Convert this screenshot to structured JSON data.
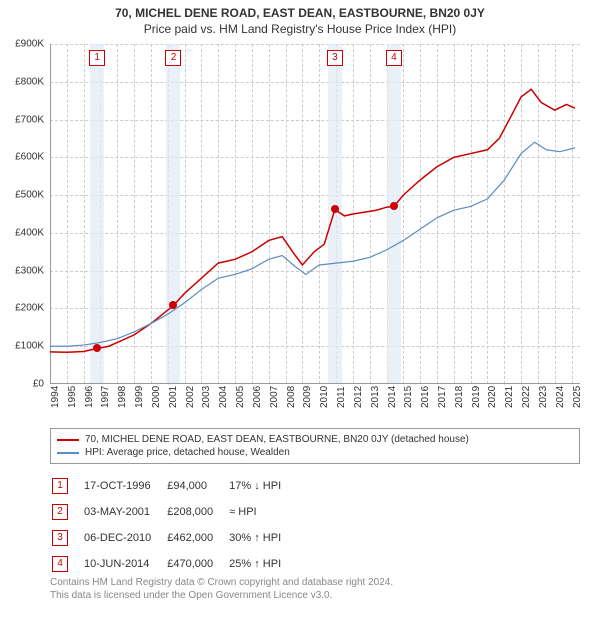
{
  "title": "70, MICHEL DENE ROAD, EAST DEAN, EASTBOURNE, BN20 0JY",
  "subtitle": "Price paid vs. HM Land Registry's House Price Index (HPI)",
  "chart": {
    "type": "line",
    "background_color": "#ffffff",
    "grid_color": "#cccccc",
    "x_years": [
      1994,
      1995,
      1996,
      1997,
      1998,
      1999,
      2000,
      2001,
      2002,
      2003,
      2004,
      2005,
      2006,
      2007,
      2008,
      2009,
      2010,
      2011,
      2012,
      2013,
      2014,
      2015,
      2016,
      2017,
      2018,
      2019,
      2020,
      2021,
      2022,
      2023,
      2024,
      2025
    ],
    "xlim": [
      1994,
      2025.5
    ],
    "ylim": [
      0,
      900000
    ],
    "ytick_step": 100000,
    "ytick_labels": [
      "£0",
      "£100K",
      "£200K",
      "£300K",
      "£400K",
      "£500K",
      "£600K",
      "£700K",
      "£800K",
      "£900K"
    ],
    "event_band_color": "#e0eaf5",
    "series": [
      {
        "name": "property_price",
        "label": "70, MICHEL DENE ROAD, EAST DEAN, EASTBOURNE, BN20 0JY (detached house)",
        "color": "#cc0000",
        "line_width": 1.5,
        "data": [
          [
            1994.0,
            85000
          ],
          [
            1995.0,
            84000
          ],
          [
            1996.0,
            86000
          ],
          [
            1996.8,
            94000
          ],
          [
            1997.5,
            100000
          ],
          [
            1998.0,
            110000
          ],
          [
            1999.0,
            130000
          ],
          [
            2000.0,
            160000
          ],
          [
            2001.34,
            208000
          ],
          [
            2002.0,
            240000
          ],
          [
            2003.0,
            280000
          ],
          [
            2004.0,
            320000
          ],
          [
            2005.0,
            330000
          ],
          [
            2006.0,
            350000
          ],
          [
            2007.0,
            380000
          ],
          [
            2007.8,
            390000
          ],
          [
            2008.5,
            345000
          ],
          [
            2009.0,
            315000
          ],
          [
            2009.7,
            350000
          ],
          [
            2010.3,
            370000
          ],
          [
            2010.93,
            462000
          ],
          [
            2011.5,
            445000
          ],
          [
            2012.0,
            450000
          ],
          [
            2012.7,
            455000
          ],
          [
            2013.4,
            460000
          ],
          [
            2014.0,
            468000
          ],
          [
            2014.44,
            470000
          ],
          [
            2015.0,
            500000
          ],
          [
            2016.0,
            540000
          ],
          [
            2017.0,
            575000
          ],
          [
            2018.0,
            600000
          ],
          [
            2019.0,
            610000
          ],
          [
            2020.0,
            620000
          ],
          [
            2020.7,
            650000
          ],
          [
            2021.3,
            700000
          ],
          [
            2022.0,
            760000
          ],
          [
            2022.6,
            780000
          ],
          [
            2023.2,
            745000
          ],
          [
            2024.0,
            725000
          ],
          [
            2024.7,
            740000
          ],
          [
            2025.2,
            730000
          ]
        ]
      },
      {
        "name": "hpi",
        "label": "HPI: Average price, detached house, Wealden",
        "color": "#5b8bbf",
        "line_width": 1.2,
        "data": [
          [
            1994.0,
            100000
          ],
          [
            1995.0,
            100000
          ],
          [
            1996.0,
            103000
          ],
          [
            1997.0,
            110000
          ],
          [
            1998.0,
            120000
          ],
          [
            1999.0,
            138000
          ],
          [
            2000.0,
            160000
          ],
          [
            2001.0,
            185000
          ],
          [
            2002.0,
            215000
          ],
          [
            2003.0,
            250000
          ],
          [
            2004.0,
            280000
          ],
          [
            2005.0,
            290000
          ],
          [
            2006.0,
            305000
          ],
          [
            2007.0,
            330000
          ],
          [
            2007.8,
            340000
          ],
          [
            2008.6,
            310000
          ],
          [
            2009.2,
            290000
          ],
          [
            2010.0,
            315000
          ],
          [
            2011.0,
            320000
          ],
          [
            2012.0,
            325000
          ],
          [
            2013.0,
            335000
          ],
          [
            2014.0,
            355000
          ],
          [
            2015.0,
            380000
          ],
          [
            2016.0,
            410000
          ],
          [
            2017.0,
            440000
          ],
          [
            2018.0,
            460000
          ],
          [
            2019.0,
            470000
          ],
          [
            2020.0,
            490000
          ],
          [
            2021.0,
            540000
          ],
          [
            2022.0,
            610000
          ],
          [
            2022.8,
            640000
          ],
          [
            2023.5,
            620000
          ],
          [
            2024.3,
            615000
          ],
          [
            2025.2,
            625000
          ]
        ]
      }
    ],
    "events": [
      {
        "idx": "1",
        "year": 1996.8,
        "date": "17-OCT-1996",
        "price": "£94,000",
        "price_val": 94000,
        "delta": "17% ↓ HPI"
      },
      {
        "idx": "2",
        "year": 2001.34,
        "date": "03-MAY-2001",
        "price": "£208,000",
        "price_val": 208000,
        "delta": "≈ HPI"
      },
      {
        "idx": "3",
        "year": 2010.93,
        "date": "06-DEC-2010",
        "price": "£462,000",
        "price_val": 462000,
        "delta": "30% ↑ HPI"
      },
      {
        "idx": "4",
        "year": 2014.44,
        "date": "10-JUN-2014",
        "price": "£470,000",
        "price_val": 470000,
        "delta": "25% ↑ HPI"
      }
    ]
  },
  "legend_title": "",
  "footer_line1": "Contains HM Land Registry data © Crown copyright and database right 2024.",
  "footer_line2": "This data is licensed under the Open Government Licence v3.0."
}
